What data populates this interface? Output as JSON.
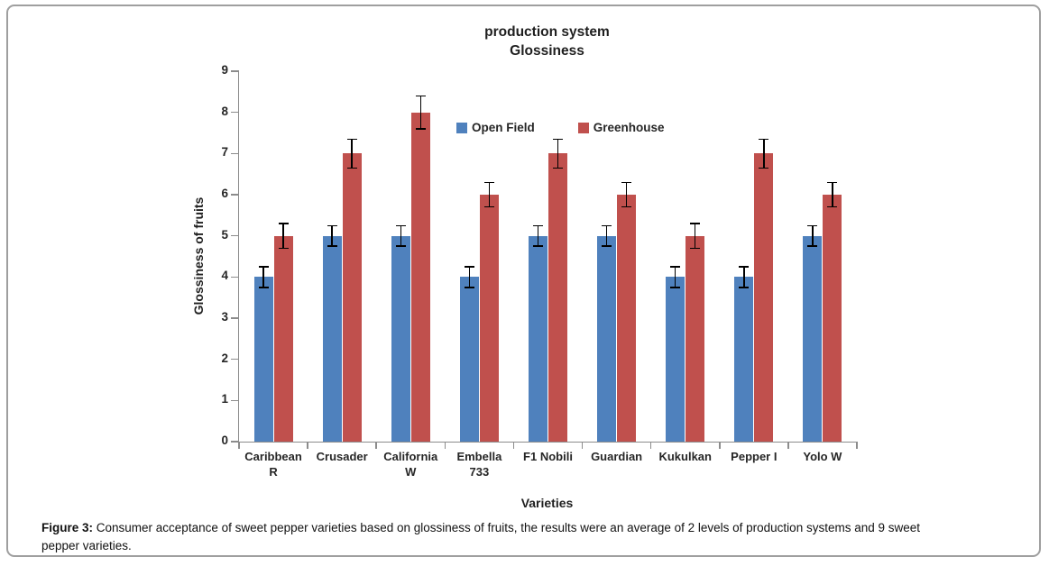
{
  "figure": {
    "caption_label": "Figure 3:",
    "caption_text": " Consumer acceptance of sweet pepper varieties based on glossiness of fruits, the results were an average of 2 levels of production systems and 9 sweet pepper varieties."
  },
  "colors": {
    "open_field": "#4f81bd",
    "greenhouse": "#c0504d",
    "error_bar": "#000000",
    "axis": "#8c8c8c",
    "frame_border": "#9f9f9f"
  },
  "chart_data": {
    "type": "bar",
    "title_lines": [
      "production system",
      "Glossiness"
    ],
    "xlabel": "Varieties",
    "ylabel": "Glossiness of fruits",
    "ylim": [
      0,
      9
    ],
    "ytick_step": 1,
    "grid": false,
    "legend_position": "inside-top-center",
    "categories": [
      "Caribbean R",
      "Crusader",
      "California W",
      "Embella 733",
      "F1 Nobili",
      "Guardian",
      "Kukulkan",
      "Pepper I",
      "Yolo W"
    ],
    "category_lines": [
      [
        "Caribbean",
        "R"
      ],
      [
        "Crusader"
      ],
      [
        "California",
        "W"
      ],
      [
        "Embella",
        "733"
      ],
      [
        "F1 Nobili"
      ],
      [
        "Guardian"
      ],
      [
        "Kukulkan"
      ],
      [
        "Pepper I"
      ],
      [
        "Yolo W"
      ]
    ],
    "series": [
      {
        "name": "Open Field",
        "color": "#4f81bd",
        "values": [
          4,
          5,
          5,
          4,
          5,
          5,
          4,
          4,
          5
        ],
        "errors": [
          0.25,
          0.25,
          0.25,
          0.25,
          0.25,
          0.25,
          0.25,
          0.25,
          0.25
        ]
      },
      {
        "name": "Greenhouse",
        "color": "#c0504d",
        "values": [
          5,
          7,
          8,
          6,
          7,
          6,
          5,
          7,
          6
        ],
        "errors": [
          0.3,
          0.35,
          0.4,
          0.3,
          0.35,
          0.3,
          0.3,
          0.35,
          0.3
        ]
      }
    ]
  }
}
